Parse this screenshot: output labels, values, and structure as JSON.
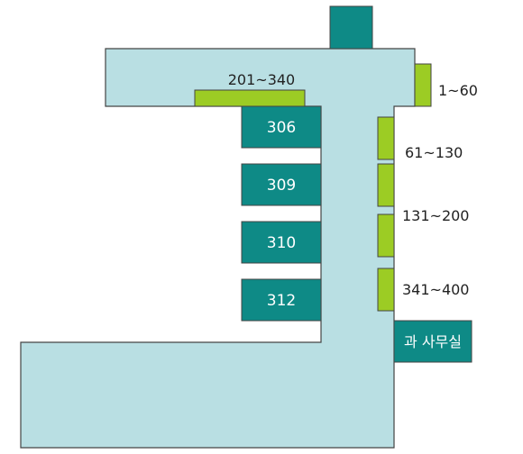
{
  "colors": {
    "corridor": "#b9dfe3",
    "room": "#0e8a86",
    "locker": "#9ccc24",
    "outline": "#444444",
    "text": "#222222",
    "room_text": "#ffffff"
  },
  "rooms": [
    {
      "id": "room-306",
      "label": "306"
    },
    {
      "id": "room-309",
      "label": "309"
    },
    {
      "id": "room-310",
      "label": "310"
    },
    {
      "id": "room-312",
      "label": "312"
    },
    {
      "id": "dept-office",
      "label": "과 사무실"
    }
  ],
  "lockers": [
    {
      "id": "locker-201-340",
      "label": "201~340"
    },
    {
      "id": "locker-1-60",
      "label": "1~60"
    },
    {
      "id": "locker-61-130",
      "label": "61~130"
    },
    {
      "id": "locker-131-200",
      "label": "131~200"
    },
    {
      "id": "locker-341-400",
      "label": "341~400"
    }
  ]
}
